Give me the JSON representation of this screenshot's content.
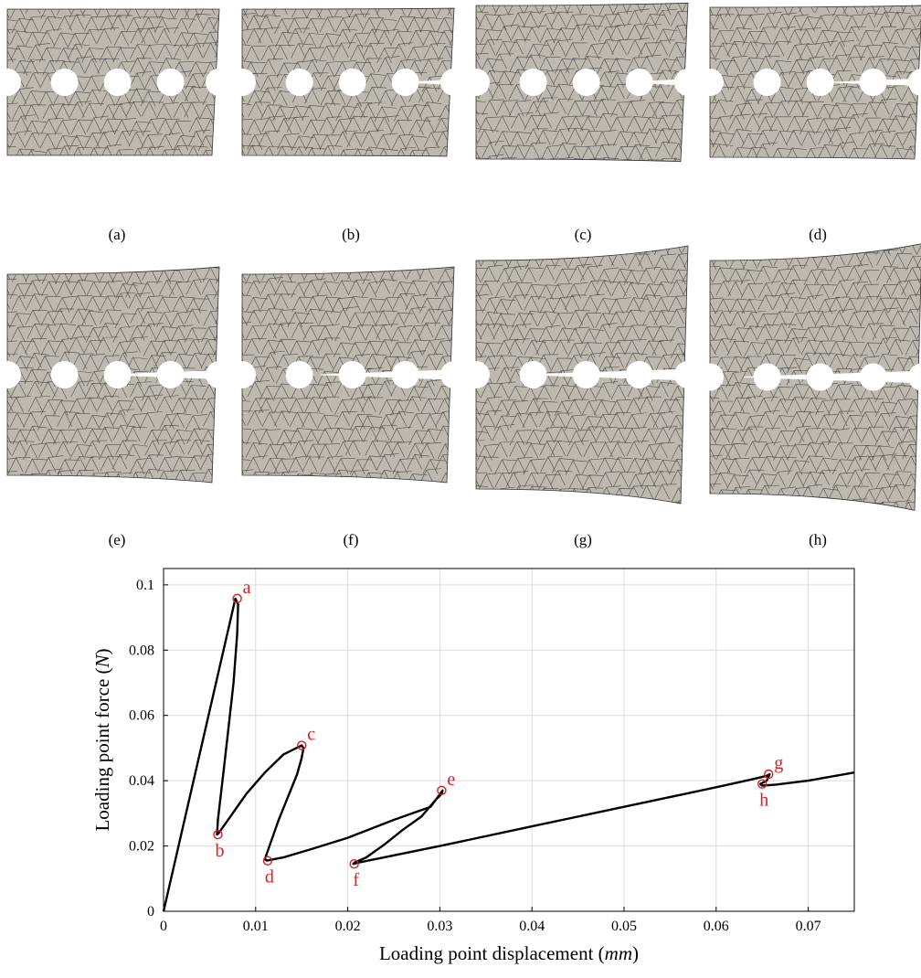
{
  "panel_captions": [
    "(a)",
    "(b)",
    "(c)",
    "(d)",
    "(e)",
    "(f)",
    "(g)",
    "(h)"
  ],
  "colors": {
    "mesh_fill": "#bdb9ae",
    "mesh_line": "#333333",
    "curve": "#000000",
    "marker": "#e41a1c",
    "grid": "#dcdcdc"
  },
  "chart_data": {
    "type": "line",
    "title": "",
    "xlabel": {
      "main": "Loading point displacement ",
      "unit": "mm"
    },
    "ylabel": {
      "main": "Loading point force ",
      "unit": "N"
    },
    "xlim": [
      0,
      0.075
    ],
    "ylim": [
      0,
      0.105
    ],
    "xticks": [
      "0",
      "0.01",
      "0.02",
      "0.03",
      "0.04",
      "0.05",
      "0.06",
      "0.07"
    ],
    "yticks": [
      "0",
      "0.02",
      "0.04",
      "0.06",
      "0.08",
      "0.1"
    ],
    "grid": true,
    "series": [
      {
        "x": [
          0,
          0.0078,
          0.0081,
          0.008,
          0.0076,
          0.007,
          0.0064,
          0.0059,
          0.0058,
          0.006,
          0.0075,
          0.009,
          0.011,
          0.013,
          0.015,
          0.0152,
          0.015,
          0.0145,
          0.0135,
          0.0125,
          0.0115,
          0.011,
          0.0112,
          0.013,
          0.016,
          0.02,
          0.025,
          0.029,
          0.0303,
          0.0302,
          0.0295,
          0.028,
          0.026,
          0.024,
          0.022,
          0.0208,
          0.0206,
          0.021,
          0.03,
          0.04,
          0.05,
          0.06,
          0.064,
          0.0655,
          0.0658,
          0.0655,
          0.0648,
          0.065,
          0.0665,
          0.07,
          0.075
        ],
        "y": [
          0,
          0.0958,
          0.094,
          0.085,
          0.07,
          0.055,
          0.04,
          0.028,
          0.0235,
          0.024,
          0.03,
          0.036,
          0.0425,
          0.048,
          0.0508,
          0.05,
          0.047,
          0.042,
          0.035,
          0.028,
          0.02,
          0.016,
          0.0155,
          0.0165,
          0.019,
          0.0225,
          0.028,
          0.032,
          0.037,
          0.036,
          0.034,
          0.029,
          0.025,
          0.0205,
          0.0165,
          0.015,
          0.0145,
          0.0148,
          0.02,
          0.026,
          0.032,
          0.038,
          0.0405,
          0.0415,
          0.042,
          0.04,
          0.039,
          0.0385,
          0.0388,
          0.04,
          0.0425
        ]
      }
    ],
    "points": [
      {
        "label": "a",
        "x": 0.008,
        "y": 0.0958,
        "pos": "above-right"
      },
      {
        "label": "b",
        "x": 0.0059,
        "y": 0.0235,
        "pos": "below"
      },
      {
        "label": "c",
        "x": 0.015,
        "y": 0.0508,
        "pos": "above-right"
      },
      {
        "label": "d",
        "x": 0.0113,
        "y": 0.0155,
        "pos": "below"
      },
      {
        "label": "e",
        "x": 0.0302,
        "y": 0.037,
        "pos": "above-right"
      },
      {
        "label": "f",
        "x": 0.0207,
        "y": 0.0145,
        "pos": "below"
      },
      {
        "label": "g",
        "x": 0.0657,
        "y": 0.042,
        "pos": "above-right"
      },
      {
        "label": "h",
        "x": 0.065,
        "y": 0.039,
        "pos": "below"
      }
    ]
  }
}
